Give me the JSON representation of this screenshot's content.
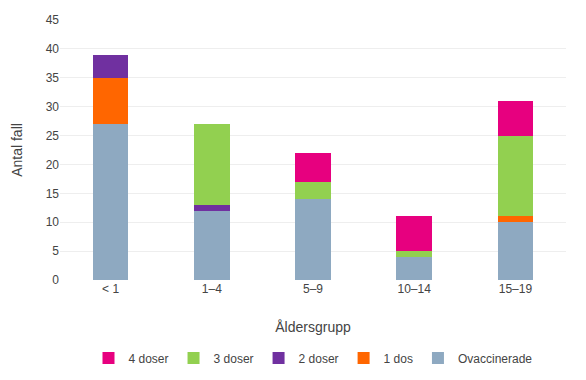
{
  "chart_data": {
    "type": "bar",
    "stacked": true,
    "categories": [
      "< 1",
      "1–4",
      "5–9",
      "10–14",
      "15–19"
    ],
    "series": [
      {
        "name": "Ovaccinerade",
        "color": "#8EA9C1",
        "values": [
          27,
          12,
          14,
          4,
          10
        ]
      },
      {
        "name": "1 dos",
        "color": "#FF6600",
        "values": [
          8,
          0,
          0,
          0,
          1
        ]
      },
      {
        "name": "2 doser",
        "color": "#7030A0",
        "values": [
          4,
          1,
          0,
          0,
          0
        ]
      },
      {
        "name": "3 doser",
        "color": "#92D050",
        "values": [
          0,
          14,
          3,
          1,
          14
        ]
      },
      {
        "name": "4 doser",
        "color": "#E7007F",
        "values": [
          0,
          0,
          5,
          6,
          6
        ]
      }
    ],
    "xlabel": "Åldersgrupp",
    "ylabel": "Antal fall",
    "ylim": [
      0,
      45
    ],
    "yticks": [
      0,
      5,
      10,
      15,
      20,
      25,
      30,
      35,
      40,
      45
    ],
    "grid": true,
    "legend": "bottom"
  }
}
